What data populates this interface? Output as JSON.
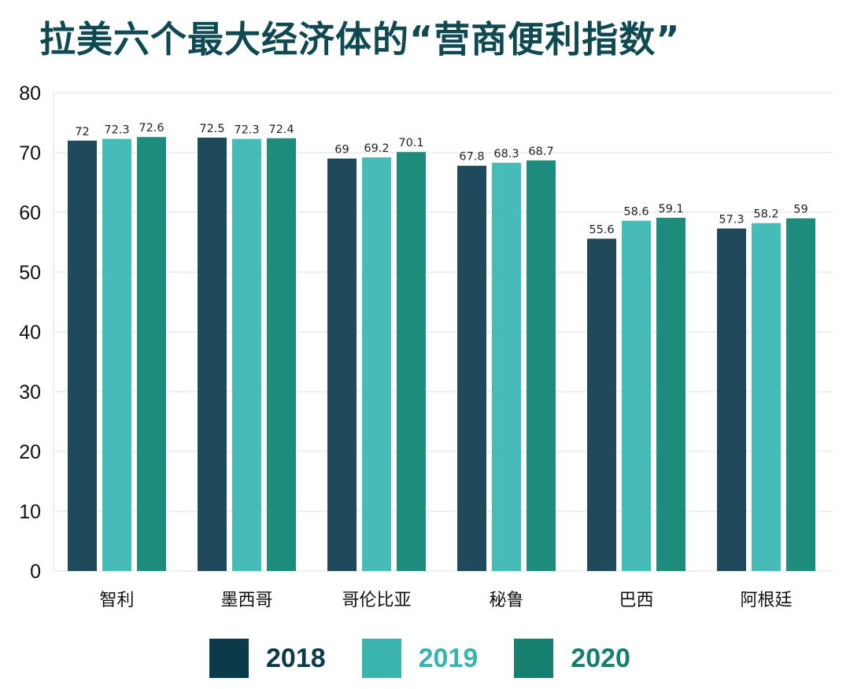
{
  "chart_data": {
    "type": "bar",
    "title": "拉美六个最大经济体的“营商便利指数”",
    "categories": [
      "智利",
      "墨西哥",
      "哥伦比亚",
      "秘鲁",
      "巴西",
      "阿根廷"
    ],
    "series": [
      {
        "name": "2018",
        "color": "#1e4a5c",
        "legend_color": "#0b3a4a",
        "values": [
          72,
          72.5,
          69,
          67.8,
          55.6,
          57.3
        ]
      },
      {
        "name": "2019",
        "color": "#45bcb8",
        "legend_color": "#3ab5ae",
        "values": [
          72.3,
          72.3,
          69.2,
          68.3,
          58.6,
          58.2
        ]
      },
      {
        "name": "2020",
        "color": "#1e8c7c",
        "legend_color": "#158070",
        "values": [
          72.6,
          72.4,
          70.1,
          68.7,
          59.1,
          59
        ]
      }
    ],
    "ylim": [
      0,
      80
    ],
    "yticks": [
      0,
      10,
      20,
      30,
      40,
      50,
      60,
      70,
      80
    ],
    "grid": true,
    "legend_position": "bottom"
  }
}
